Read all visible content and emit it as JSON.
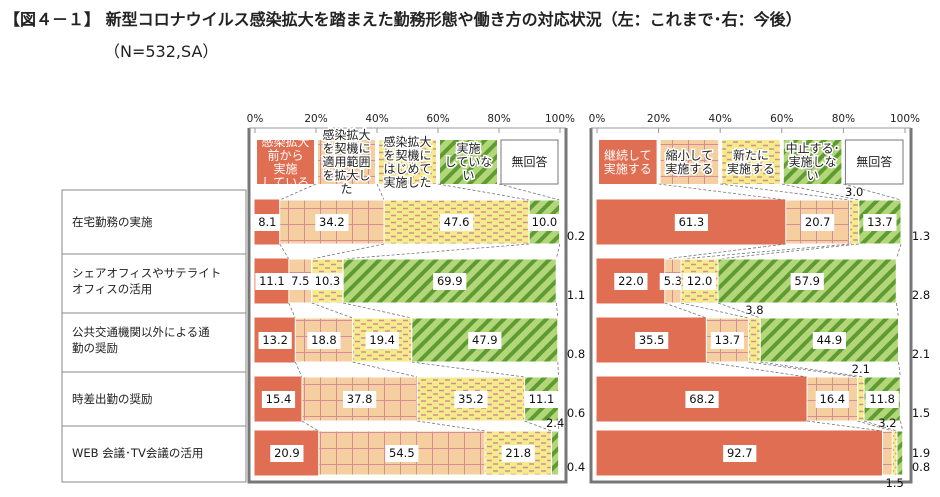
{
  "title": "【図４－１】 新型コロナウイルス感染拡大を踏まえた勤務形態や働き方の対応状況（左：これまで･右：今後）",
  "subtitle": "（N=532,SA）",
  "colors": {
    "red": "#E06E52",
    "pink_bg": "#F5CF9F",
    "pink_line": "#D58C95",
    "yellow_bg": "#F4EC8A",
    "yellow_dash": "#D58C95",
    "green_bg": "#B3D67A",
    "green_stripe": "#5E9C32",
    "none": "#FFFFFF"
  },
  "chart_data": [
    {
      "type": "bar",
      "orientation": "horizontal-stacked-100",
      "title": "これまで",
      "xlim": [
        0,
        100
      ],
      "ticks": [
        "0%",
        "20%",
        "40%",
        "60%",
        "80%",
        "100%"
      ],
      "categories": [
        "在宅勤務の実施",
        "シェアオフィスやサテライトオフィスの活用",
        "公共交通機関以外による通勤の奨励",
        "時差出勤の奨励",
        "WEB 会議･TV会議の活用"
      ],
      "category_lines": [
        [
          "在宅勤務の実施"
        ],
        [
          "シェアオフィスやサテライト",
          "オフィスの活用"
        ],
        [
          "公共交通機関以外による通",
          "勤の奨励"
        ],
        [
          "時差出勤の奨励"
        ],
        [
          "WEB 会議･TV会議の活用"
        ]
      ],
      "series": [
        {
          "name": "感染拡大前から実施している",
          "legend_lines": [
            "感染拡大",
            "前から",
            "実施",
            "している"
          ],
          "pattern": "solid-red",
          "values": [
            8.1,
            11.1,
            13.2,
            15.4,
            20.9
          ]
        },
        {
          "name": "感染拡大を契機に適用範囲を拡大した",
          "legend_lines": [
            "感染拡大",
            "を契機に",
            "適用範囲",
            "を拡大し",
            "た"
          ],
          "pattern": "grid-pink",
          "values": [
            34.2,
            7.5,
            18.8,
            37.8,
            54.5
          ]
        },
        {
          "name": "感染拡大を契機にはじめて実施した",
          "legend_lines": [
            "感染拡大",
            "を契機に",
            "はじめて",
            "実施した"
          ],
          "pattern": "dash-yellow",
          "values": [
            47.6,
            10.3,
            19.4,
            35.2,
            21.8
          ]
        },
        {
          "name": "実施していない",
          "legend_lines": [
            "実施",
            "していな",
            "い"
          ],
          "pattern": "stripe-green",
          "values": [
            10.0,
            69.9,
            47.9,
            11.1,
            2.4
          ]
        },
        {
          "name": "無回答",
          "legend_lines": [
            "無回答"
          ],
          "pattern": "white",
          "values": [
            0.2,
            1.1,
            0.8,
            0.6,
            0.4
          ]
        }
      ]
    },
    {
      "type": "bar",
      "orientation": "horizontal-stacked-100",
      "title": "今後",
      "xlim": [
        0,
        100
      ],
      "ticks": [
        "0%",
        "20%",
        "40%",
        "60%",
        "80%",
        "100%"
      ],
      "series": [
        {
          "name": "継続して実施する",
          "legend_lines": [
            "継続して",
            "実施する"
          ],
          "pattern": "solid-red",
          "values": [
            61.3,
            22.0,
            35.5,
            68.2,
            92.7
          ]
        },
        {
          "name": "縮小して実施する",
          "legend_lines": [
            "縮小して",
            "実施する"
          ],
          "pattern": "grid-pink",
          "values": [
            20.7,
            5.3,
            13.7,
            16.4,
            3.2
          ]
        },
        {
          "name": "新たに実施する",
          "legend_lines": [
            "新たに",
            "実施する"
          ],
          "pattern": "dash-yellow",
          "values": [
            3.0,
            12.0,
            3.8,
            2.1,
            1.5
          ]
        },
        {
          "name": "中止する･実施しない",
          "legend_lines": [
            "中止する･",
            "実施しな",
            "い"
          ],
          "pattern": "stripe-green",
          "values": [
            13.7,
            57.9,
            44.9,
            11.8,
            1.9
          ]
        },
        {
          "name": "無回答",
          "legend_lines": [
            "無回答"
          ],
          "pattern": "white",
          "values": [
            1.3,
            2.8,
            2.1,
            1.5,
            0.8
          ]
        }
      ]
    }
  ]
}
